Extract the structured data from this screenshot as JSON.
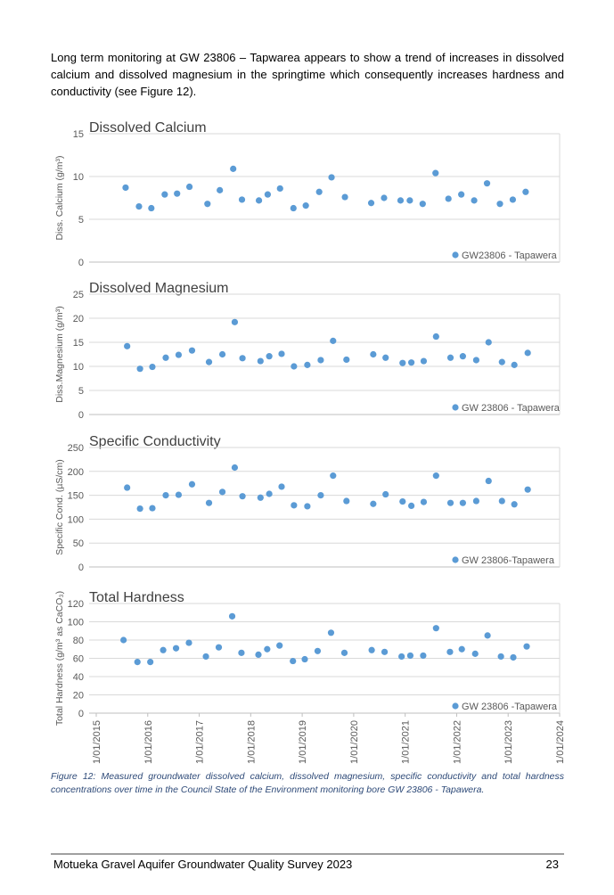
{
  "paragraph": "Long term monitoring at GW 23806 – Tapwarea appears to show a trend of increases in dissolved calcium and dissolved magnesium in the springtime which consequently increases hardness and conductivity (see Figure 12).",
  "chart_data": [
    {
      "type": "scatter",
      "title": "Dissolved Calcium",
      "y_label": "Diss. Calcium (g/m³)",
      "color": "#5b9bd5",
      "xlim": [
        2015,
        2024
      ],
      "ylim": [
        0,
        15
      ],
      "yticks": [
        0,
        5,
        10,
        15
      ],
      "grid": true,
      "legend": "lower right",
      "series": [
        {
          "name": "GW23806 - Tapawera",
          "color": "#5b9bd5",
          "x": [
            2015.57,
            2015.83,
            2016.07,
            2016.33,
            2016.57,
            2016.81,
            2017.16,
            2017.4,
            2017.66,
            2017.83,
            2018.16,
            2018.33,
            2018.57,
            2018.83,
            2019.07,
            2019.33,
            2019.57,
            2019.83,
            2020.34,
            2020.59,
            2020.91,
            2021.09,
            2021.34,
            2021.59,
            2021.84,
            2022.09,
            2022.34,
            2022.59,
            2022.84,
            2023.09,
            2023.34
          ],
          "values": [
            8.7,
            6.5,
            6.3,
            7.9,
            8.0,
            8.8,
            6.8,
            8.4,
            10.9,
            7.3,
            7.2,
            7.9,
            8.6,
            6.3,
            6.6,
            8.2,
            9.9,
            7.6,
            6.9,
            7.5,
            7.2,
            7.2,
            6.8,
            10.4,
            7.4,
            7.9,
            7.2,
            9.2,
            6.8,
            7.3,
            8.2
          ]
        }
      ]
    },
    {
      "type": "scatter",
      "title": "Dissolved Magnesium",
      "y_label": "Diss.Magnesium (g/m³)",
      "color": "#5b9bd5",
      "xlim": [
        2015,
        2024
      ],
      "ylim": [
        0,
        25
      ],
      "yticks": [
        0,
        5,
        10,
        15,
        20,
        25
      ],
      "grid": true,
      "legend": "lower right",
      "series": [
        {
          "name": "GW 23806 - Tapawera",
          "color": "#5b9bd5",
          "x": [
            2015.6,
            2015.85,
            2016.09,
            2016.35,
            2016.6,
            2016.86,
            2017.19,
            2017.45,
            2017.69,
            2017.84,
            2018.19,
            2018.36,
            2018.6,
            2018.84,
            2019.1,
            2019.36,
            2019.6,
            2019.86,
            2020.38,
            2020.62,
            2020.95,
            2021.12,
            2021.36,
            2021.6,
            2021.88,
            2022.12,
            2022.38,
            2022.62,
            2022.88,
            2023.12,
            2023.38
          ],
          "values": [
            14.2,
            9.5,
            9.9,
            11.8,
            12.4,
            13.3,
            10.9,
            12.5,
            19.2,
            11.7,
            11.1,
            12.1,
            12.6,
            10.0,
            10.3,
            11.3,
            15.3,
            11.4,
            12.5,
            11.8,
            10.7,
            10.8,
            11.1,
            16.2,
            11.8,
            12.1,
            11.3,
            15.0,
            10.9,
            10.3,
            12.8
          ]
        }
      ]
    },
    {
      "type": "scatter",
      "title": "Specific Conductivity",
      "y_label": "Specific Cond. (µS/cm)",
      "color": "#5b9bd5",
      "xlim": [
        2015,
        2024
      ],
      "ylim": [
        0,
        250
      ],
      "yticks": [
        0,
        50,
        100,
        150,
        200,
        250
      ],
      "grid": true,
      "legend": "lower right",
      "series": [
        {
          "name": "GW 23806-Tapawera",
          "color": "#5b9bd5",
          "x": [
            2015.6,
            2015.85,
            2016.09,
            2016.35,
            2016.6,
            2016.86,
            2017.19,
            2017.45,
            2017.69,
            2017.84,
            2018.19,
            2018.36,
            2018.6,
            2018.84,
            2019.1,
            2019.36,
            2019.6,
            2019.86,
            2020.38,
            2020.62,
            2020.95,
            2021.12,
            2021.36,
            2021.6,
            2021.88,
            2022.12,
            2022.38,
            2022.62,
            2022.88,
            2023.12,
            2023.38
          ],
          "values": [
            166,
            122,
            123,
            150,
            151,
            173,
            134,
            157,
            208,
            148,
            145,
            153,
            168,
            129,
            127,
            150,
            191,
            138,
            132,
            152,
            137,
            128,
            136,
            191,
            134,
            134,
            138,
            180,
            138,
            131,
            162
          ]
        }
      ]
    },
    {
      "type": "scatter",
      "title": "Total Hardness",
      "y_label": "Total Hardness (g/m³ as CaCO₃)",
      "color": "#5b9bd5",
      "xlim": [
        2015,
        2024
      ],
      "ylim": [
        0,
        120
      ],
      "yticks": [
        0,
        20,
        40,
        60,
        80,
        100,
        120
      ],
      "grid": true,
      "legend": "lower right",
      "xticks": [
        {
          "value": 2015,
          "label": "1/01/2015"
        },
        {
          "value": 2016,
          "label": "1/01/2016"
        },
        {
          "value": 2017,
          "label": "1/01/2017"
        },
        {
          "value": 2018,
          "label": "1/01/2018"
        },
        {
          "value": 2019,
          "label": "1/01/2019"
        },
        {
          "value": 2020,
          "label": "1/01/2020"
        },
        {
          "value": 2021,
          "label": "1/01/2021"
        },
        {
          "value": 2022,
          "label": "1/01/2022"
        },
        {
          "value": 2023,
          "label": "1/01/2023"
        },
        {
          "value": 2024,
          "label": "1/01/2024"
        }
      ],
      "series": [
        {
          "name": "GW 23806 -Tapawera",
          "color": "#5b9bd5",
          "x": [
            2015.53,
            2015.8,
            2016.05,
            2016.3,
            2016.55,
            2016.8,
            2017.13,
            2017.38,
            2017.64,
            2017.82,
            2018.15,
            2018.32,
            2018.56,
            2018.82,
            2019.05,
            2019.3,
            2019.56,
            2019.82,
            2020.35,
            2020.6,
            2020.93,
            2021.1,
            2021.35,
            2021.6,
            2021.87,
            2022.1,
            2022.36,
            2022.6,
            2022.86,
            2023.1,
            2023.36
          ],
          "values": [
            80,
            56,
            56,
            69,
            71,
            77,
            62,
            72,
            106,
            66,
            64,
            70,
            74,
            57,
            59,
            68,
            88,
            66,
            69,
            67,
            62,
            63,
            63,
            93,
            67,
            70,
            65,
            85,
            62,
            61,
            73
          ]
        }
      ]
    }
  ],
  "caption": "Figure 12: Measured groundwater dissolved calcium, dissolved magnesium, specific conductivity and total hardness concentrations over time in the Council State of the Environment monitoring bore GW 23806 - Tapawera.",
  "footer": {
    "title": "Motueka Gravel Aquifer Groundwater Quality Survey 2023",
    "page": "23"
  }
}
